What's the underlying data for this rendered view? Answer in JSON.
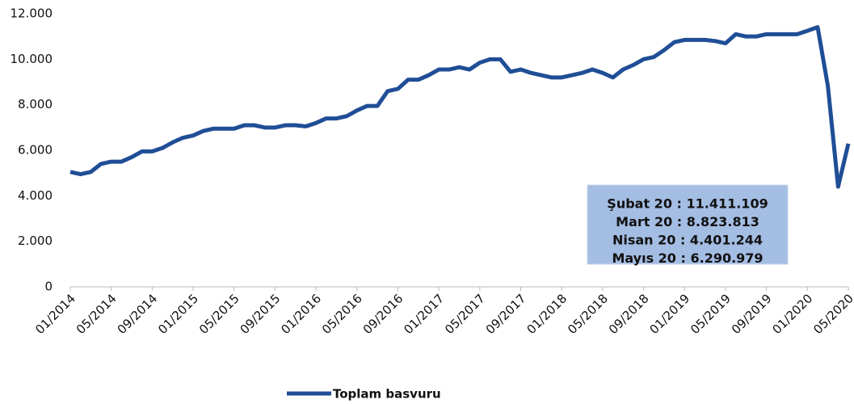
{
  "chart_data": {
    "type": "line",
    "categories": [
      "01/2014",
      null,
      null,
      null,
      "05/2014",
      null,
      null,
      null,
      "09/2014",
      null,
      null,
      null,
      "01/2015",
      null,
      null,
      null,
      "05/2015",
      null,
      null,
      null,
      "09/2015",
      null,
      null,
      null,
      "01/2016",
      null,
      null,
      null,
      "05/2016",
      null,
      null,
      null,
      "09/2016",
      null,
      null,
      null,
      "01/2017",
      null,
      null,
      null,
      "05/2017",
      null,
      null,
      null,
      "09/2017",
      null,
      null,
      null,
      "01/2018",
      null,
      null,
      null,
      "05/2018",
      null,
      null,
      null,
      "09/2018",
      null,
      null,
      null,
      "01/2019",
      null,
      null,
      null,
      "05/2019",
      null,
      null,
      null,
      "09/2019",
      null,
      null,
      null,
      "01/2020",
      null,
      null,
      null,
      "05/2020"
    ],
    "series": [
      {
        "name": "Toplam basvuru",
        "color": "#1f4e96",
        "values": [
          5050,
          4950,
          5050,
          5400,
          5500,
          5500,
          5700,
          5950,
          5950,
          6100,
          6350,
          6550,
          6650,
          6850,
          6950,
          6950,
          6950,
          7100,
          7100,
          7000,
          7000,
          7100,
          7100,
          7050,
          7200,
          7400,
          7400,
          7500,
          7750,
          7950,
          7950,
          8600,
          8700,
          9100,
          9100,
          9300,
          9550,
          9550,
          9650,
          9550,
          9850,
          10000,
          10000,
          9450,
          9550,
          9400,
          9300,
          9200,
          9200,
          9300,
          9400,
          9550,
          9400,
          9200,
          9550,
          9750,
          10000,
          10100,
          10400,
          10750,
          10850,
          10850,
          10850,
          10800,
          10700,
          11100,
          11000,
          11000,
          11100,
          11100,
          11100,
          11100,
          11250,
          11411.109,
          8823.813,
          4401.244,
          6290.979
        ]
      }
    ],
    "ylim": [
      0,
      12000
    ],
    "yticks": [
      0,
      {
        "value": 2000,
        "label": "2.000"
      },
      {
        "value": 4000,
        "label": "4.000"
      },
      {
        "value": 6000,
        "label": "6.000"
      },
      {
        "value": 8000,
        "label": "8.000"
      },
      {
        "value": 10000,
        "label": "10.000"
      },
      {
        "value": 12000,
        "label": "12.000"
      }
    ],
    "annotations": [
      "Şubat 20 : 11.411.109",
      "Mart 20 : 8.823.813",
      "Nisan 20 : 4.401.244",
      "Mayıs 20 : 6.290.979"
    ],
    "legend": "bottom"
  }
}
